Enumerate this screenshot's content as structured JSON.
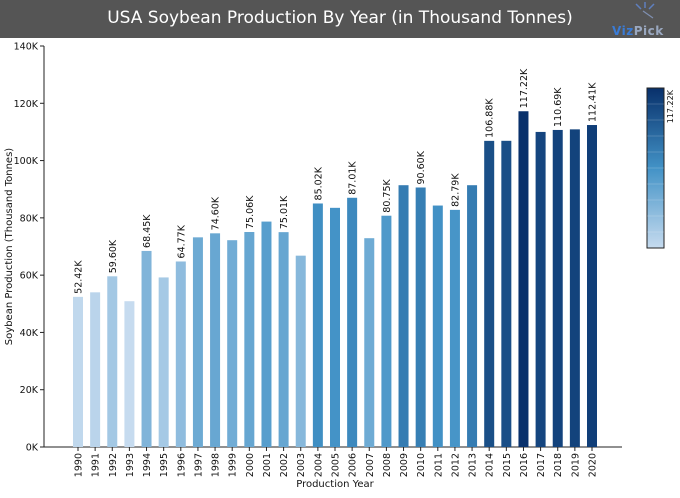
{
  "header": {
    "title": "USA Soybean Production By Year (in Thousand Tonnes)",
    "logo_brand": "Viz",
    "logo_brand_suffix": "Pick"
  },
  "colors": {
    "title_bar": "#555555",
    "scale_light": "#c6dbef",
    "scale_dark": "#08306b"
  },
  "chart_data": {
    "type": "bar",
    "title": "USA Soybean Production By Year (in Thousand Tonnes)",
    "xlabel": "Production Year",
    "ylabel": "Soybean Production (Thousand Tonnes)",
    "ylim": [
      0,
      140000
    ],
    "yticks": [
      0,
      20000,
      40000,
      60000,
      80000,
      100000,
      120000,
      140000
    ],
    "ytick_labels": [
      "0K",
      "20K",
      "40K",
      "60K",
      "80K",
      "100K",
      "120K",
      "140K"
    ],
    "grid": false,
    "legend": "colorbar top-right",
    "colorbar_label": "117.22K",
    "categories": [
      "1990",
      "1991",
      "1992",
      "1993",
      "1994",
      "1995",
      "1996",
      "1997",
      "1998",
      "1999",
      "2000",
      "2001",
      "2002",
      "2003",
      "2004",
      "2005",
      "2006",
      "2007",
      "2008",
      "2009",
      "2010",
      "2011",
      "2012",
      "2013",
      "2014",
      "2015",
      "2016",
      "2017",
      "2018",
      "2019",
      "2020"
    ],
    "values": [
      52420,
      54000,
      59600,
      50900,
      68450,
      59200,
      64770,
      73200,
      74600,
      72200,
      75060,
      78700,
      75010,
      66800,
      85020,
      83500,
      87010,
      72900,
      80750,
      91400,
      90600,
      84300,
      82790,
      91400,
      106880,
      106900,
      117220,
      110000,
      110690,
      110900,
      112410
    ],
    "data_labels": [
      "52.42K",
      "",
      "59.60K",
      "",
      "68.45K",
      "",
      "64.77K",
      "",
      "74.60K",
      "",
      "75.06K",
      "",
      "75.01K",
      "",
      "85.02K",
      "",
      "87.01K",
      "",
      "80.75K",
      "",
      "90.60K",
      "",
      "82.79K",
      "",
      "106.88K",
      "",
      "117.22K",
      "",
      "110.69K",
      "",
      "112.41K"
    ]
  }
}
